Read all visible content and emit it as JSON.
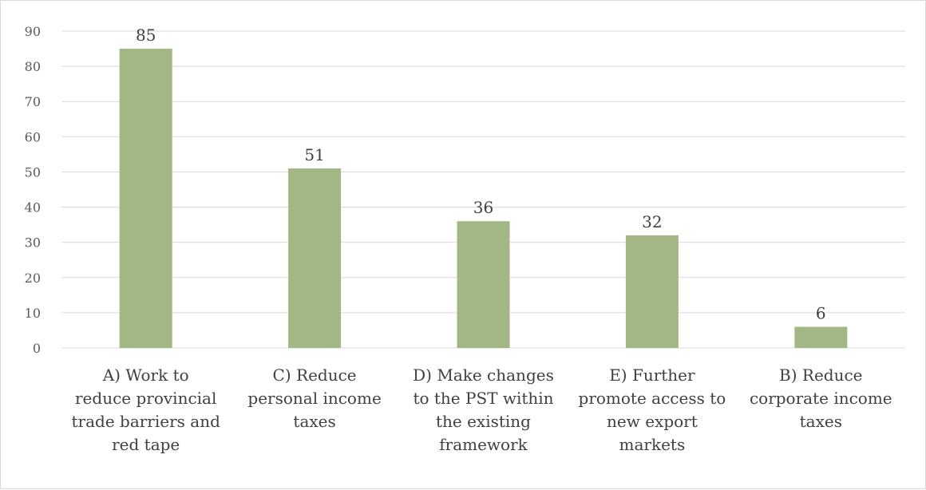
{
  "chart_data": {
    "type": "bar",
    "categories": [
      [
        "A) Work to",
        "reduce provincial",
        "trade barriers and",
        "red tape"
      ],
      [
        "C) Reduce",
        "personal income",
        "taxes"
      ],
      [
        "D) Make changes",
        "to the PST within",
        "the existing",
        "framework"
      ],
      [
        "E) Further",
        "promote access to",
        "new export",
        "markets"
      ],
      [
        "B) Reduce",
        "corporate income",
        "taxes"
      ]
    ],
    "values": [
      85,
      51,
      36,
      32,
      6
    ],
    "ylim": [
      0,
      90
    ],
    "yticks": [
      0,
      10,
      20,
      30,
      40,
      50,
      60,
      70,
      80,
      90
    ],
    "title": "",
    "xlabel": "",
    "ylabel": "",
    "grid": true,
    "legend": "none",
    "colors": {
      "bar": "#a3b784",
      "grid": "#d9d9d9",
      "tick_text": "#595959",
      "label_text": "#404040"
    }
  }
}
